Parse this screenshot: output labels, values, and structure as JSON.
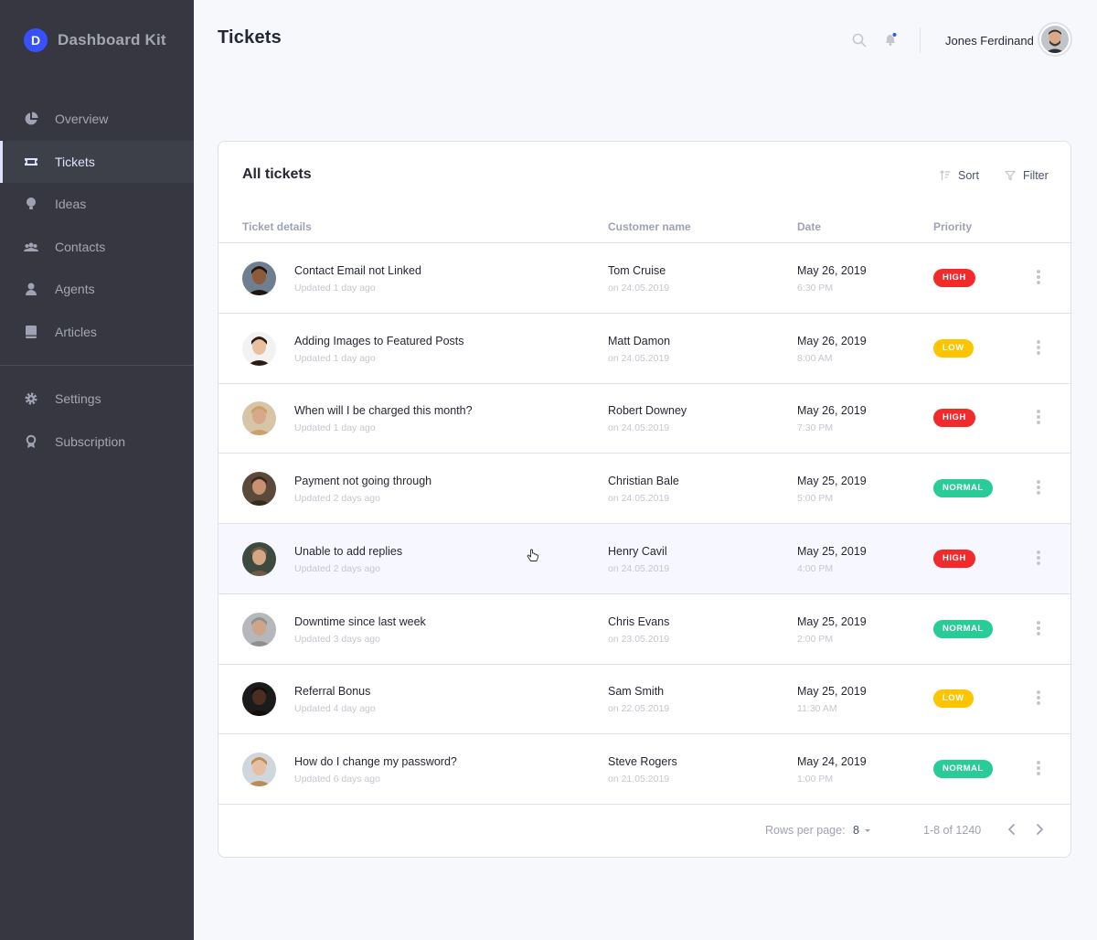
{
  "sidebar": {
    "brand": {
      "logo_letter": "D",
      "name": "Dashboard Kit",
      "accent": "#3751ff"
    },
    "items": [
      {
        "label": "Overview",
        "icon": "pie-chart-icon",
        "active": false
      },
      {
        "label": "Tickets",
        "icon": "ticket-icon",
        "active": true
      },
      {
        "label": "Ideas",
        "icon": "lightbulb-icon",
        "active": false
      },
      {
        "label": "Contacts",
        "icon": "users-icon",
        "active": false
      },
      {
        "label": "Agents",
        "icon": "agent-icon",
        "active": false
      },
      {
        "label": "Articles",
        "icon": "book-icon",
        "active": false
      },
      {
        "label": "Settings",
        "icon": "gear-icon",
        "active": false
      },
      {
        "label": "Subscription",
        "icon": "award-icon",
        "active": false
      }
    ]
  },
  "header": {
    "title": "Tickets",
    "user_name": "Jones Ferdinand",
    "notification_dot_color": "#3751ff"
  },
  "card": {
    "title": "All tickets",
    "sort_label": "Sort",
    "filter_label": "Filter",
    "columns": [
      "Ticket details",
      "Customer name",
      "Date",
      "Priority"
    ]
  },
  "priority_colors": {
    "HIGH": "#f12b2c",
    "LOW": "#fec400",
    "NORMAL": "#29cc97"
  },
  "tickets": [
    {
      "title": "Contact Email not Linked",
      "updated": "Updated 1 day ago",
      "customer": "Tom Cruise",
      "customer_date": "on 24.05.2019",
      "date": "May 26, 2019",
      "time": "6:30 PM",
      "priority": "HIGH"
    },
    {
      "title": "Adding Images to Featured Posts",
      "updated": "Updated 1 day ago",
      "customer": "Matt Damon",
      "customer_date": "on 24.05.2019",
      "date": "May 26, 2019",
      "time": "8:00 AM",
      "priority": "LOW"
    },
    {
      "title": "When will I be charged this month?",
      "updated": "Updated 1 day ago",
      "customer": "Robert Downey",
      "customer_date": "on 24.05.2019",
      "date": "May 26, 2019",
      "time": "7:30 PM",
      "priority": "HIGH"
    },
    {
      "title": "Payment not going through",
      "updated": "Updated 2 days ago",
      "customer": "Christian Bale",
      "customer_date": "on 24.05.2019",
      "date": "May 25, 2019",
      "time": "5:00 PM",
      "priority": "NORMAL"
    },
    {
      "title": "Unable to add replies",
      "updated": "Updated 2 days ago",
      "customer": "Henry Cavil",
      "customer_date": "on 24.05.2019",
      "date": "May 25, 2019",
      "time": "4:00 PM",
      "priority": "HIGH"
    },
    {
      "title": "Downtime since last week",
      "updated": "Updated 3 days ago",
      "customer": "Chris Evans",
      "customer_date": "on 23.05.2019",
      "date": "May 25, 2019",
      "time": "2:00 PM",
      "priority": "NORMAL"
    },
    {
      "title": "Referral Bonus",
      "updated": "Updated 4 day ago",
      "customer": "Sam Smith",
      "customer_date": "on 22.05.2019",
      "date": "May 25, 2019",
      "time": "11:30 AM",
      "priority": "LOW"
    },
    {
      "title": "How do I change my password?",
      "updated": "Updated 6 days ago",
      "customer": "Steve Rogers",
      "customer_date": "on 21.05.2019",
      "date": "May 24, 2019",
      "time": "1:00 PM",
      "priority": "NORMAL"
    }
  ],
  "footer": {
    "rows_per_page_label": "Rows per page:",
    "rows_per_page_value": "8",
    "range": "1-8 of 1240"
  }
}
